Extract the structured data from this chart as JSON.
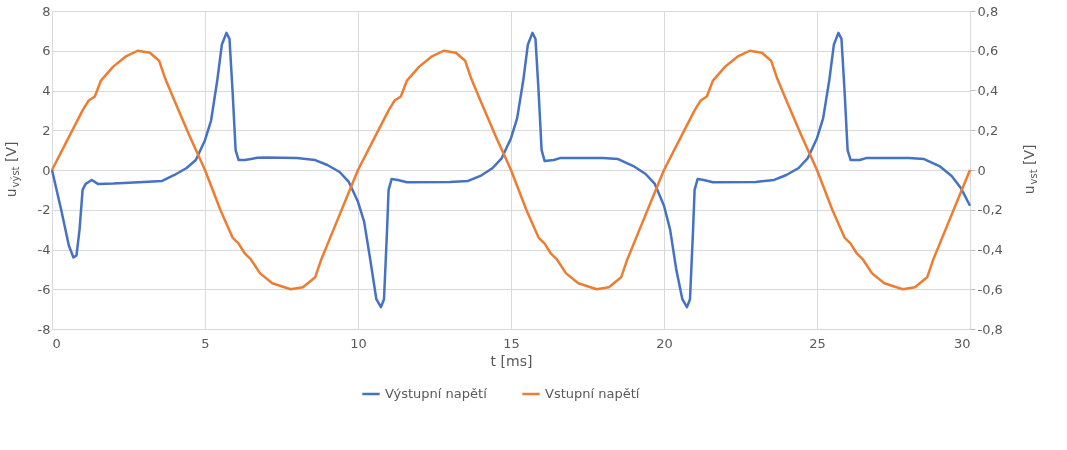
{
  "chart_data": {
    "type": "line",
    "xlabel": "t [ms]",
    "ylabel": "u$_{výst}$ [V]",
    "y2label": "u$_{vst}$ [V]",
    "xlim": [
      0,
      30
    ],
    "xticks": [
      0,
      5,
      10,
      15,
      20,
      25,
      30
    ],
    "ylim": [
      -8,
      8
    ],
    "yticks": [
      -8,
      -6,
      -4,
      -2,
      0,
      2,
      4,
      6,
      8
    ],
    "y2lim": [
      -0.8,
      0.8
    ],
    "y2ticks": [
      {
        "value": -0.8,
        "label": "-0,8"
      },
      {
        "value": -0.6,
        "label": "-0,6"
      },
      {
        "value": -0.4,
        "label": "-0,4"
      },
      {
        "value": -0.2,
        "label": "-0,2"
      },
      {
        "value": 0,
        "label": "0"
      },
      {
        "value": 0.2,
        "label": "0,2"
      },
      {
        "value": 0.4,
        "label": "0,4"
      },
      {
        "value": 0.6,
        "label": "0,6"
      },
      {
        "value": 0.8,
        "label": "0,8"
      }
    ],
    "grid": true,
    "legend": "bottom",
    "marker": "none",
    "line_style": "solid",
    "series": [
      {
        "name": "Výstupní napětí",
        "color": "#4472c4",
        "x": [
          0,
          0.3,
          0.55,
          0.7,
          0.8,
          0.9,
          1.0,
          1.1,
          1.3,
          1.5,
          2,
          3,
          3.6,
          4,
          4.4,
          4.7,
          5,
          5.2,
          5.4,
          5.55,
          5.7,
          5.8,
          5.9,
          6.0,
          6.1,
          6.3,
          6.5,
          6.7,
          7,
          8,
          8.6,
          9,
          9.4,
          9.7,
          10,
          10.2,
          10.4,
          10.6,
          10.75,
          10.85,
          10.95,
          11.0,
          11.1,
          11.3,
          11.6,
          13,
          13.6,
          14,
          14.4,
          14.7,
          15,
          15.2,
          15.4,
          15.55,
          15.7,
          15.8,
          15.9,
          16.0,
          16.1,
          16.4,
          16.6,
          18,
          18.5,
          19,
          19.4,
          19.7,
          20,
          20.2,
          20.4,
          20.6,
          20.75,
          20.85,
          20.95,
          21,
          21.1,
          21.3,
          21.6,
          23,
          23.6,
          24,
          24.4,
          24.7,
          25,
          25.2,
          25.4,
          25.55,
          25.7,
          25.8,
          25.9,
          26,
          26.1,
          26.4,
          26.6,
          28,
          28.5,
          29,
          29.4,
          29.7,
          30
        ],
        "values": [
          0,
          -2,
          -3.8,
          -4.4,
          -4.3,
          -3,
          -1,
          -0.7,
          -0.5,
          -0.7,
          -0.68,
          -0.6,
          -0.55,
          -0.25,
          0.1,
          0.5,
          1.5,
          2.5,
          4.5,
          6.3,
          6.9,
          6.6,
          4,
          1.0,
          0.5,
          0.5,
          0.55,
          0.62,
          0.63,
          0.6,
          0.5,
          0.25,
          -0.1,
          -0.6,
          -1.6,
          -2.6,
          -4.5,
          -6.5,
          -6.9,
          -6.5,
          -3,
          -1,
          -0.45,
          -0.5,
          -0.62,
          -0.6,
          -0.55,
          -0.3,
          0.1,
          0.6,
          1.6,
          2.6,
          4.5,
          6.3,
          6.9,
          6.6,
          4,
          1,
          0.45,
          0.5,
          0.6,
          0.6,
          0.55,
          0.2,
          -0.2,
          -0.7,
          -1.8,
          -3,
          -5,
          -6.5,
          -6.9,
          -6.5,
          -3,
          -1,
          -0.45,
          -0.5,
          -0.62,
          -0.6,
          -0.5,
          -0.25,
          0.1,
          0.6,
          1.6,
          2.6,
          4.5,
          6.3,
          6.9,
          6.6,
          4,
          1,
          0.5,
          0.5,
          0.6,
          0.6,
          0.55,
          0.2,
          -0.3,
          -0.9,
          -1.8
        ]
      },
      {
        "name": "Vstupní napětí",
        "color": "#ed7d31",
        "axis": "y2",
        "x": [
          0,
          0.5,
          1,
          1.2,
          1.4,
          1.6,
          2,
          2.4,
          2.8,
          3.2,
          3.5,
          3.7,
          4,
          4.5,
          5,
          5.5,
          5.9,
          6.1,
          6.3,
          6.5,
          6.8,
          7.2,
          7.8,
          8.2,
          8.6,
          8.8,
          9.2,
          9.6,
          10,
          10.5,
          11,
          11.2,
          11.4,
          11.6,
          12,
          12.4,
          12.8,
          13.2,
          13.5,
          13.7,
          14,
          14.5,
          15,
          15.5,
          15.9,
          16.1,
          16.3,
          16.5,
          16.8,
          17.2,
          17.8,
          18.2,
          18.6,
          18.8,
          19.2,
          19.6,
          20,
          20.5,
          21,
          21.2,
          21.4,
          21.6,
          22,
          22.4,
          22.8,
          23.2,
          23.5,
          23.7,
          24,
          24.5,
          25,
          25.5,
          25.9,
          26.1,
          26.3,
          26.5,
          26.8,
          27.2,
          27.8,
          28.2,
          28.6,
          28.8,
          29.2,
          29.6,
          30
        ],
        "values": [
          0,
          0.15,
          0.3,
          0.35,
          0.37,
          0.45,
          0.52,
          0.57,
          0.6,
          0.59,
          0.55,
          0.46,
          0.35,
          0.17,
          0,
          -0.2,
          -0.34,
          -0.37,
          -0.42,
          -0.45,
          -0.52,
          -0.57,
          -0.6,
          -0.59,
          -0.54,
          -0.45,
          -0.3,
          -0.15,
          0,
          0.15,
          0.3,
          0.35,
          0.37,
          0.45,
          0.52,
          0.57,
          0.6,
          0.59,
          0.55,
          0.46,
          0.35,
          0.17,
          0,
          -0.2,
          -0.34,
          -0.37,
          -0.42,
          -0.45,
          -0.52,
          -0.57,
          -0.6,
          -0.59,
          -0.54,
          -0.45,
          -0.3,
          -0.15,
          0,
          0.15,
          0.3,
          0.35,
          0.37,
          0.45,
          0.52,
          0.57,
          0.6,
          0.59,
          0.55,
          0.46,
          0.35,
          0.17,
          0,
          -0.2,
          -0.34,
          -0.37,
          -0.42,
          -0.45,
          -0.52,
          -0.57,
          -0.6,
          -0.59,
          -0.54,
          -0.45,
          -0.3,
          -0.15,
          0
        ]
      }
    ]
  }
}
